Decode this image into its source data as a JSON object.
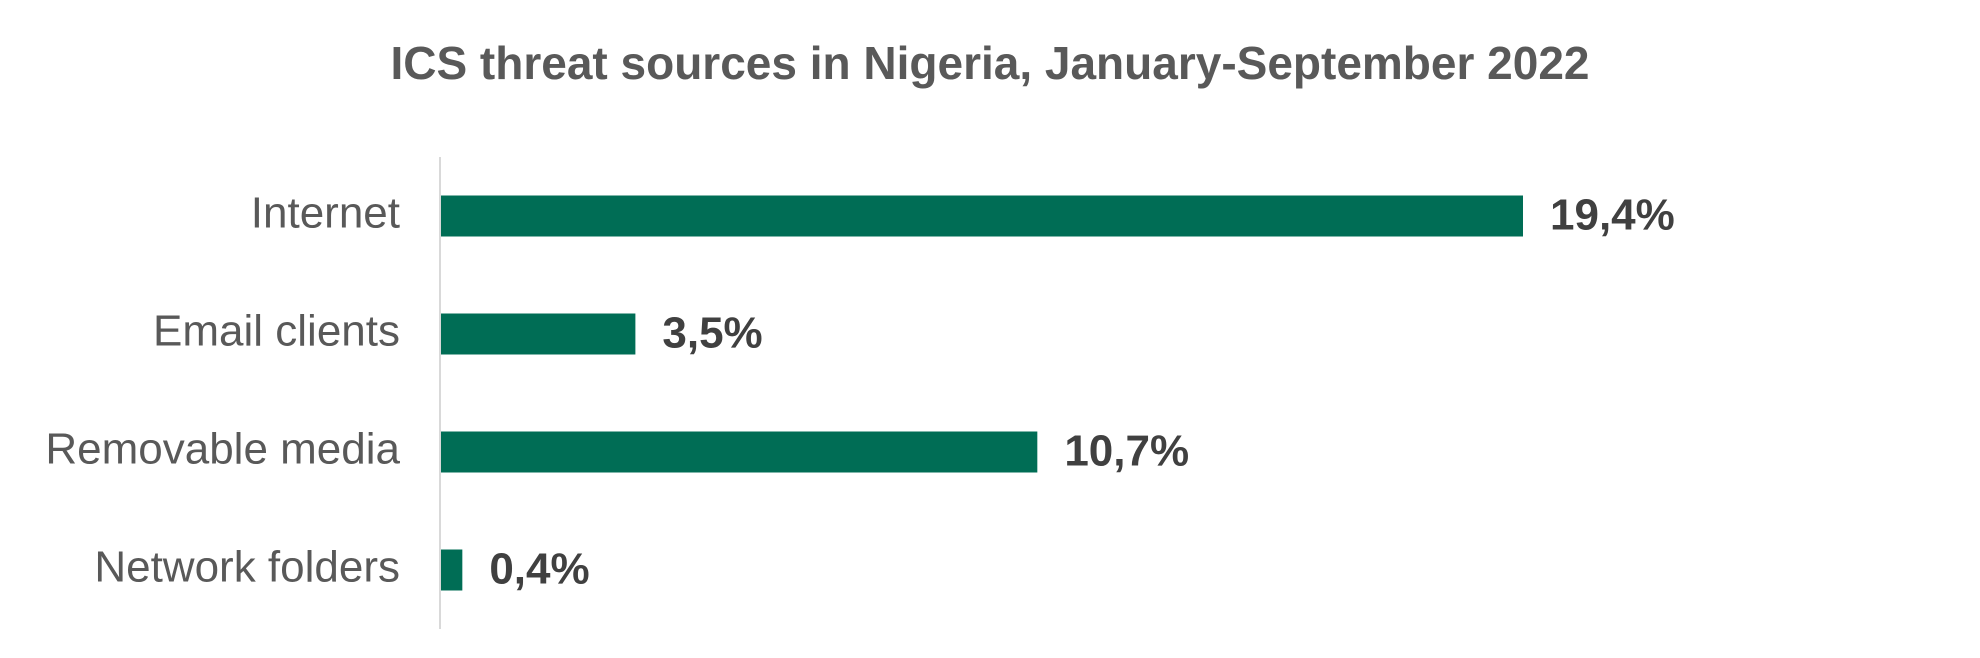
{
  "chart_data": {
    "type": "bar",
    "orientation": "horizontal",
    "title": "ICS threat sources in Nigeria, January-September 2022",
    "categories": [
      "Internet",
      "Email clients",
      "Removable media",
      "Network folders"
    ],
    "values": [
      19.4,
      3.5,
      10.7,
      0.4
    ],
    "value_labels": [
      "19,4%",
      "3,5%",
      "10,7%",
      "0,4%"
    ],
    "unit": "%",
    "xlabel": "",
    "ylabel": "",
    "xlim": [
      0,
      19.4
    ],
    "grid": false,
    "legend": "none",
    "colors": {
      "bar": "#006D55",
      "axis": "#D9D9D9",
      "category_text": "#595959",
      "value_text": "#404040",
      "title_text": "#595959"
    }
  }
}
